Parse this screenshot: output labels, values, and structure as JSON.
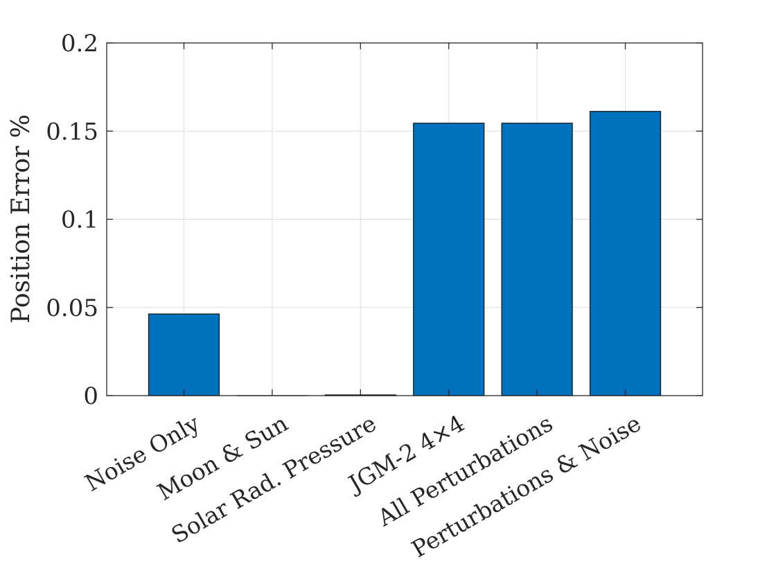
{
  "chart_data": {
    "type": "bar",
    "title": "",
    "xlabel": "",
    "ylabel": "Position Error %",
    "categories": [
      "Noise Only",
      "Moon & Sun",
      "Solar Rad. Pressure",
      "JGM-2 4×4",
      "All Perturbations",
      "Perturbations & Noise"
    ],
    "values": [
      0.0463,
      0.0,
      0.0004,
      0.1545,
      0.1545,
      0.1612
    ],
    "ylim": [
      0,
      0.2
    ],
    "yticks": [
      0,
      0.05,
      0.1,
      0.15,
      0.2
    ],
    "ytick_labels": [
      "0",
      "0.05",
      "0.1",
      "0.15",
      "0.2"
    ],
    "grid": true,
    "bar_color": "#0072BD"
  }
}
